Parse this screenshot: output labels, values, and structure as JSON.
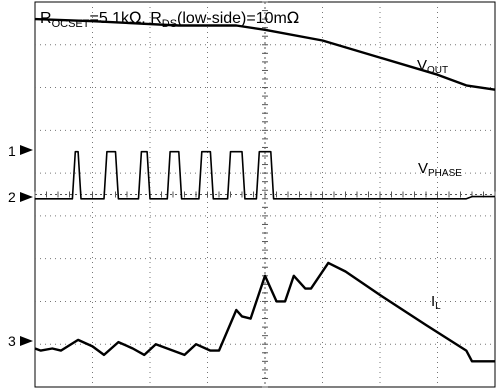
{
  "chart_data": {
    "type": "line",
    "title": "",
    "xlabel": "",
    "ylabel": "",
    "grid": true,
    "annotation": {
      "r_ocset_prefix": "R",
      "r_ocset_sub": "OCSET",
      "r_ocset_value": "=5.1k",
      "ohm": "Ω",
      "separator": ", ",
      "r_ds_prefix": "R",
      "r_ds_sub": "DS",
      "r_ds_value": "(low-side)=10m"
    },
    "channel_markers": [
      {
        "number": "1",
        "level_div": 5.5
      },
      {
        "number": "2",
        "level_div": 4.4
      },
      {
        "number": "3",
        "level_div": 0.6
      }
    ],
    "series": [
      {
        "name": "V",
        "subscript": "OUT",
        "color": "#000000",
        "points": [
          [
            0.0,
            8.6
          ],
          [
            1.0,
            8.55
          ],
          [
            2.5,
            8.45
          ],
          [
            3.5,
            8.45
          ],
          [
            4.0,
            8.35
          ],
          [
            5.0,
            8.1
          ],
          [
            6.0,
            7.7
          ],
          [
            7.0,
            7.3
          ],
          [
            7.5,
            7.05
          ],
          [
            8.0,
            6.95
          ]
        ]
      },
      {
        "name": "V",
        "subscript": "PHASE",
        "color": "#000000",
        "points": [
          [
            0.0,
            4.4
          ],
          [
            0.65,
            4.4
          ],
          [
            0.7,
            5.5
          ],
          [
            0.75,
            5.5
          ],
          [
            0.8,
            4.4
          ],
          [
            1.2,
            4.4
          ],
          [
            1.25,
            5.5
          ],
          [
            1.4,
            5.5
          ],
          [
            1.45,
            4.4
          ],
          [
            1.8,
            4.4
          ],
          [
            1.85,
            5.5
          ],
          [
            1.95,
            5.5
          ],
          [
            2.0,
            4.4
          ],
          [
            2.3,
            4.4
          ],
          [
            2.35,
            5.5
          ],
          [
            2.5,
            5.5
          ],
          [
            2.55,
            4.4
          ],
          [
            2.85,
            4.4
          ],
          [
            2.9,
            5.5
          ],
          [
            3.05,
            5.5
          ],
          [
            3.1,
            4.4
          ],
          [
            3.35,
            4.4
          ],
          [
            3.4,
            5.5
          ],
          [
            3.6,
            5.5
          ],
          [
            3.65,
            4.4
          ],
          [
            3.85,
            4.4
          ],
          [
            3.9,
            5.5
          ],
          [
            4.1,
            5.5
          ],
          [
            4.15,
            4.4
          ],
          [
            7.5,
            4.4
          ],
          [
            7.6,
            4.45
          ],
          [
            8.0,
            4.45
          ]
        ]
      },
      {
        "name": "I",
        "subscript": "L",
        "color": "#000000",
        "points": [
          [
            0.0,
            0.9
          ],
          [
            0.1,
            0.85
          ],
          [
            0.3,
            0.9
          ],
          [
            0.45,
            0.85
          ],
          [
            0.75,
            1.1
          ],
          [
            1.0,
            0.95
          ],
          [
            1.2,
            0.75
          ],
          [
            1.45,
            1.05
          ],
          [
            1.7,
            0.9
          ],
          [
            1.9,
            0.75
          ],
          [
            2.1,
            1.0
          ],
          [
            2.4,
            0.85
          ],
          [
            2.6,
            0.75
          ],
          [
            2.8,
            1.0
          ],
          [
            3.05,
            0.85
          ],
          [
            3.2,
            0.85
          ],
          [
            3.5,
            1.8
          ],
          [
            3.6,
            1.65
          ],
          [
            3.75,
            1.6
          ],
          [
            4.0,
            2.6
          ],
          [
            4.2,
            2.0
          ],
          [
            4.35,
            2.0
          ],
          [
            4.5,
            2.6
          ],
          [
            4.7,
            2.3
          ],
          [
            4.8,
            2.3
          ],
          [
            5.1,
            2.9
          ],
          [
            5.4,
            2.7
          ],
          [
            6.0,
            2.15
          ],
          [
            6.8,
            1.45
          ],
          [
            7.5,
            0.85
          ],
          [
            7.6,
            0.6
          ],
          [
            8.0,
            0.6
          ]
        ]
      }
    ]
  }
}
